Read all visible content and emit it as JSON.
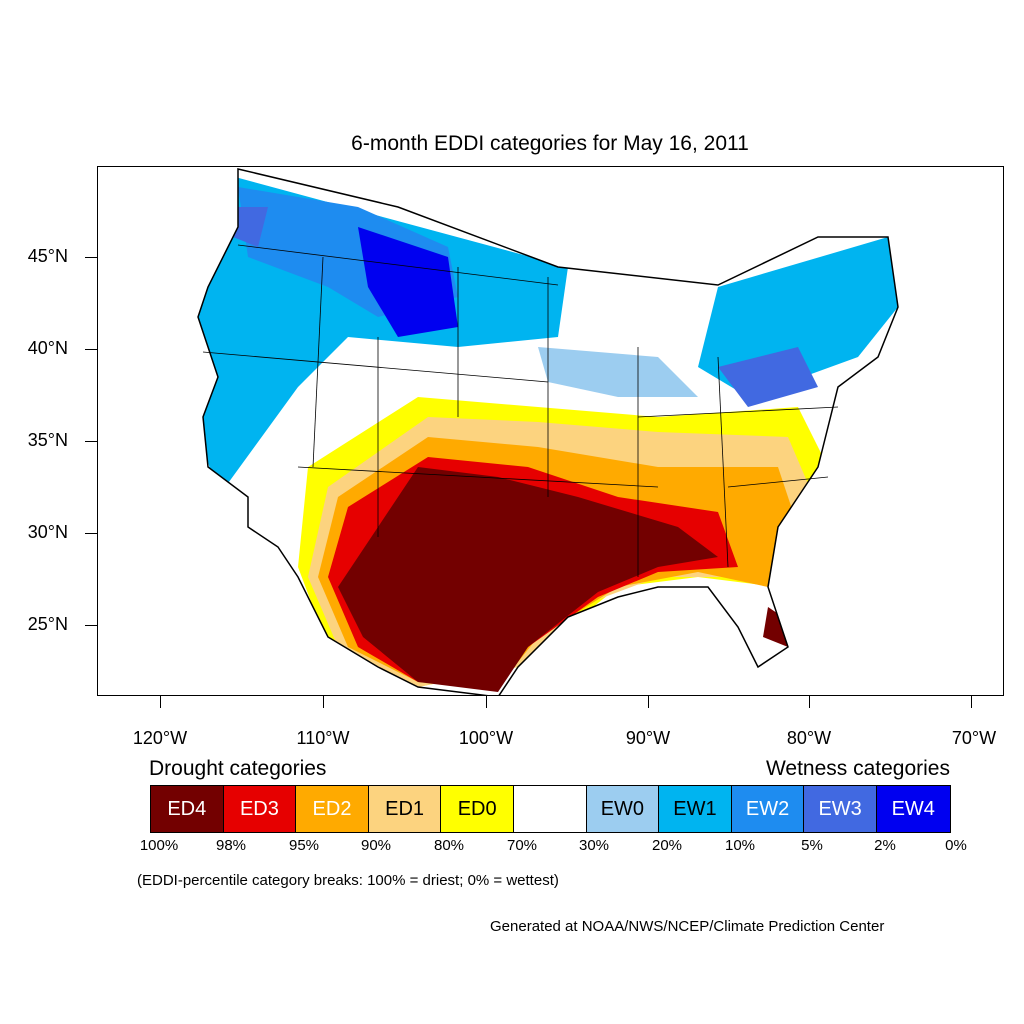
{
  "title": "6-month EDDI categories for May 16, 2011",
  "lat_labels": [
    "45°N",
    "40°N",
    "35°N",
    "30°N",
    "25°N"
  ],
  "lon_labels": [
    "120°W",
    "110°W",
    "100°W",
    "90°W",
    "80°W",
    "70°W"
  ],
  "legend": {
    "drought_title": "Drought categories",
    "wetness_title": "Wetness categories",
    "categories": [
      {
        "label": "ED4",
        "color": "#730000",
        "text_color": "#ffffff"
      },
      {
        "label": "ED3",
        "color": "#e60000",
        "text_color": "#ffffff"
      },
      {
        "label": "ED2",
        "color": "#ffaa00",
        "text_color": "#ffffff"
      },
      {
        "label": "ED1",
        "color": "#fcd37f",
        "text_color": "#000000"
      },
      {
        "label": "ED0",
        "color": "#ffff00",
        "text_color": "#000000"
      },
      {
        "label": "",
        "color": "#ffffff",
        "text_color": "#000000"
      },
      {
        "label": "EW0",
        "color": "#9ccdf0",
        "text_color": "#000000"
      },
      {
        "label": "EW1",
        "color": "#00b4f0",
        "text_color": "#000000"
      },
      {
        "label": "EW2",
        "color": "#1e8cf0",
        "text_color": "#ffffff"
      },
      {
        "label": "EW3",
        "color": "#4169e1",
        "text_color": "#ffffff"
      },
      {
        "label": "EW4",
        "color": "#0000f0",
        "text_color": "#ffffff"
      }
    ],
    "percent_breaks": [
      "100%",
      "98%",
      "95%",
      "90%",
      "80%",
      "70%",
      "30%",
      "20%",
      "10%",
      "5%",
      "2%",
      "0%"
    ]
  },
  "note": "(EDDI-percentile category breaks: 100% = driest; 0% = wettest)",
  "credit": "Generated at NOAA/NWS/NCEP/Climate Prediction Center"
}
